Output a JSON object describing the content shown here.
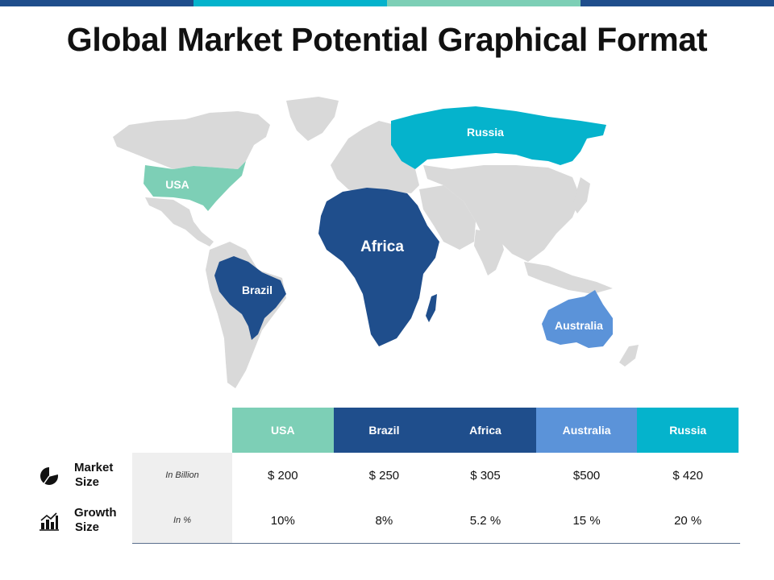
{
  "title": "Global Market Potential Graphical Format",
  "colors": {
    "usa": "#7dcfb6",
    "brazil": "#1f4e8c",
    "africa": "#1f4e8c",
    "australia": "#5b93d9",
    "russia": "#05b3cc",
    "land": "#d9d9d9",
    "topbar": [
      "#1f4e8c",
      "#05b3cc",
      "#7dcfb6",
      "#1f4e8c"
    ]
  },
  "map": {
    "labels": {
      "usa": "USA",
      "russia": "Russia",
      "africa": "Africa",
      "brazil": "Brazil",
      "australia": "Australia"
    }
  },
  "table": {
    "columns": [
      "USA",
      "Brazil",
      "Africa",
      "Australia",
      "Russia"
    ],
    "rows": [
      {
        "label_line1": "Market",
        "label_line2": "Size",
        "unit": "In Billion",
        "icon": "pie-chart-icon",
        "values": [
          "$ 200",
          "$ 250",
          "$ 305",
          "$500",
          "$ 420"
        ]
      },
      {
        "label_line1": "Growth",
        "label_line2": "Size",
        "unit": "In %",
        "icon": "bar-chart-icon",
        "values": [
          "10%",
          "8%",
          "5.2 %",
          "15 %",
          "20 %"
        ]
      }
    ]
  }
}
